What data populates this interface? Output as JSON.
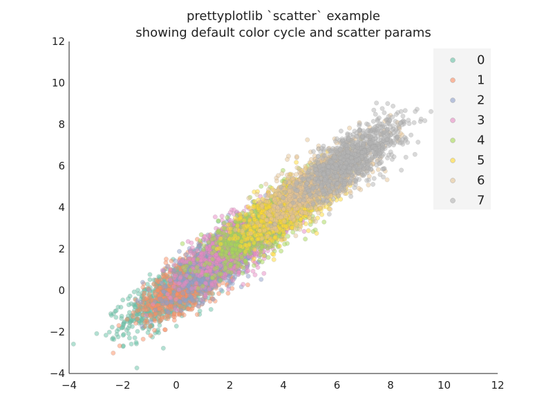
{
  "chart_data": {
    "type": "scatter",
    "title": [
      "prettyplotlib `scatter` example",
      "showing default color cycle and scatter params"
    ],
    "xlabel": "",
    "ylabel": "",
    "xlim": [
      -4,
      12
    ],
    "ylim": [
      -4,
      12
    ],
    "xticks": [
      -4,
      -2,
      0,
      2,
      4,
      6,
      8,
      10,
      12
    ],
    "yticks": [
      -4,
      -2,
      0,
      2,
      4,
      6,
      8,
      10,
      12
    ],
    "xtick_labels": [
      "−4",
      "−2",
      "0",
      "2",
      "4",
      "6",
      "8",
      "10",
      "12"
    ],
    "ytick_labels": [
      "−4",
      "−2",
      "0",
      "2",
      "4",
      "6",
      "8",
      "10",
      "12"
    ],
    "grid": false,
    "legend_position": "top-right",
    "series": [
      {
        "name": "0",
        "color": "#66c2a5",
        "center": [
          0,
          0
        ],
        "count": 1000
      },
      {
        "name": "1",
        "color": "#fc8d62",
        "center": [
          0.7,
          0.6
        ],
        "count": 1000
      },
      {
        "name": "2",
        "color": "#8da0cb",
        "center": [
          1.6,
          1.5
        ],
        "count": 1000
      },
      {
        "name": "3",
        "color": "#e78ac3",
        "center": [
          2.3,
          2.3
        ],
        "count": 1000
      },
      {
        "name": "4",
        "color": "#a6d854",
        "center": [
          3.3,
          3.2
        ],
        "count": 1000
      },
      {
        "name": "5",
        "color": "#ffd92f",
        "center": [
          4.3,
          4.2
        ],
        "count": 1000
      },
      {
        "name": "6",
        "color": "#e5c494",
        "center": [
          5.3,
          5.2
        ],
        "count": 1000
      },
      {
        "name": "7",
        "color": "#b3b3b3",
        "center": [
          6.6,
          6.4
        ],
        "count": 1000
      }
    ]
  }
}
